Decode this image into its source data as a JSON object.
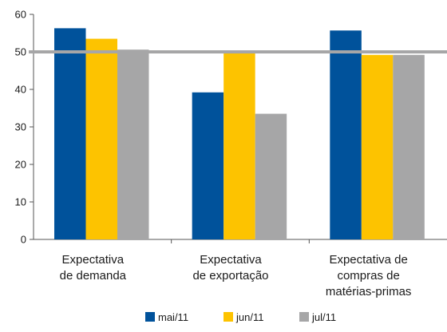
{
  "chart_data": {
    "type": "bar",
    "categories": [
      [
        "Expectativa",
        "de demanda"
      ],
      [
        "Expectativa",
        "de exportação"
      ],
      [
        "Expectativa de",
        "compras de",
        "matérias-primas"
      ]
    ],
    "series": [
      {
        "name": "mai/11",
        "values": [
          56.3,
          39.2,
          55.7
        ],
        "color": "#00529b"
      },
      {
        "name": "jun/11",
        "values": [
          53.5,
          50.1,
          49.2
        ],
        "color": "#fdc300"
      },
      {
        "name": "jul/11",
        "values": [
          50.6,
          33.5,
          49.2
        ],
        "color": "#a6a6a7"
      }
    ],
    "ylim": [
      0,
      60
    ],
    "yticks": [
      0,
      10,
      20,
      30,
      40,
      50,
      60
    ],
    "reference_line": {
      "value": 50,
      "color": "#a6a6a7"
    },
    "grid": false,
    "legend_position": "bottom"
  }
}
